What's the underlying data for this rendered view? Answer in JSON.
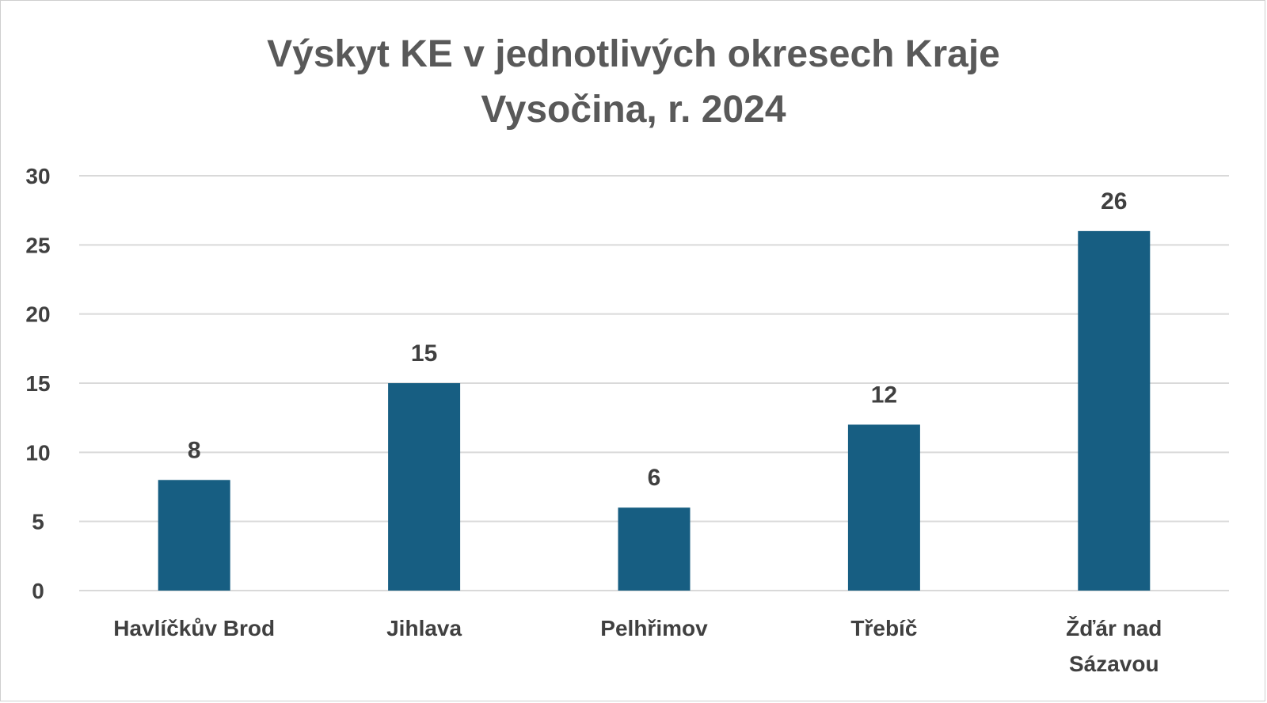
{
  "chart_data": {
    "type": "bar",
    "title_lines": [
      "Výskyt KE v jednotlivých okresech Kraje",
      "Vysočina, r. 2024"
    ],
    "categories": [
      [
        "Havlíčkův Brod"
      ],
      [
        "Jihlava"
      ],
      [
        "Pelhřimov"
      ],
      [
        "Třebíč"
      ],
      [
        "Žďár nad",
        "Sázavou"
      ]
    ],
    "values": [
      8,
      15,
      6,
      12,
      26
    ],
    "ylim": [
      0,
      30
    ],
    "yticks": [
      0,
      5,
      10,
      15,
      20,
      25,
      30
    ],
    "grid": true,
    "legend": "none",
    "bar_color": "#175E82",
    "grid_color": "#d9d9d9"
  }
}
